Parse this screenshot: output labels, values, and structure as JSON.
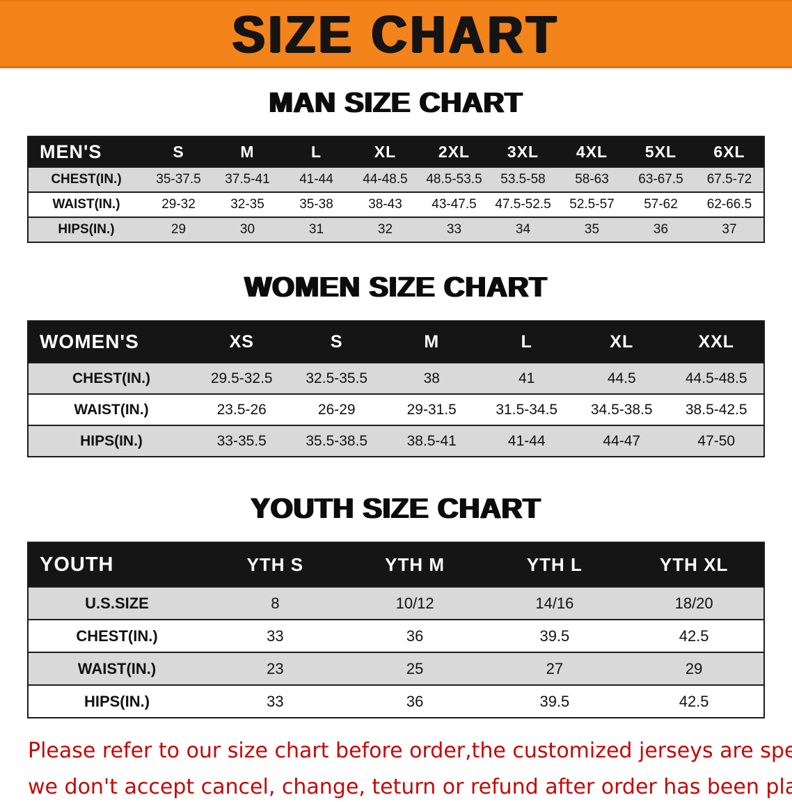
{
  "banner": {
    "title": "SIZE CHART"
  },
  "colors": {
    "banner_bg": "#f3831b",
    "table_header_bg": "#151515",
    "row_stripe": "#d9d9d9",
    "notice_red": "#c40808"
  },
  "sections": {
    "men": {
      "heading": "MAN SIZE CHART",
      "table": {
        "columns": [
          "MEN'S",
          "S",
          "M",
          "L",
          "XL",
          "2XL",
          "3XL",
          "4XL",
          "5XL",
          "6XL"
        ],
        "rows": [
          [
            "CHEST(IN.)",
            "35-37.5",
            "37.5-41",
            "41-44",
            "44-48.5",
            "48.5-53.5",
            "53.5-58",
            "58-63",
            "63-67.5",
            "67.5-72"
          ],
          [
            "WAIST(IN.)",
            "29-32",
            "32-35",
            "35-38",
            "38-43",
            "43-47.5",
            "47.5-52.5",
            "52.5-57",
            "57-62",
            "62-66.5"
          ],
          [
            "HIPS(IN.)",
            "29",
            "30",
            "31",
            "32",
            "33",
            "34",
            "35",
            "36",
            "37"
          ]
        ]
      }
    },
    "women": {
      "heading": "WOMEN SIZE CHART",
      "table": {
        "columns": [
          "WOMEN'S",
          "XS",
          "S",
          "M",
          "L",
          "XL",
          "XXL"
        ],
        "rows": [
          [
            "CHEST(IN.)",
            "29.5-32.5",
            "32.5-35.5",
            "38",
            "41",
            "44.5",
            "44.5-48.5"
          ],
          [
            "WAIST(IN.)",
            "23.5-26",
            "26-29",
            "29-31.5",
            "31.5-34.5",
            "34.5-38.5",
            "38.5-42.5"
          ],
          [
            "HIPS(IN.)",
            "33-35.5",
            "35.5-38.5",
            "38.5-41",
            "41-44",
            "44-47",
            "47-50"
          ]
        ]
      }
    },
    "youth": {
      "heading": "YOUTH SIZE CHART",
      "table": {
        "columns": [
          "YOUTH",
          "YTH S",
          "YTH M",
          "YTH L",
          "YTH XL"
        ],
        "rows": [
          [
            "U.S.SIZE",
            "8",
            "10/12",
            "14/16",
            "18/20"
          ],
          [
            "CHEST(IN.)",
            "33",
            "36",
            "39.5",
            "42.5"
          ],
          [
            "WAIST(IN.)",
            "23",
            "25",
            "27",
            "29"
          ],
          [
            "HIPS(IN.)",
            "33",
            "36",
            "39.5",
            "42.5"
          ]
        ]
      }
    }
  },
  "footer": {
    "line1": "Please refer to our size chart before order,the customized jerseys are special products,",
    "line2": "we don't accept cancel, change, teturn or refund after order has been placed!"
  }
}
